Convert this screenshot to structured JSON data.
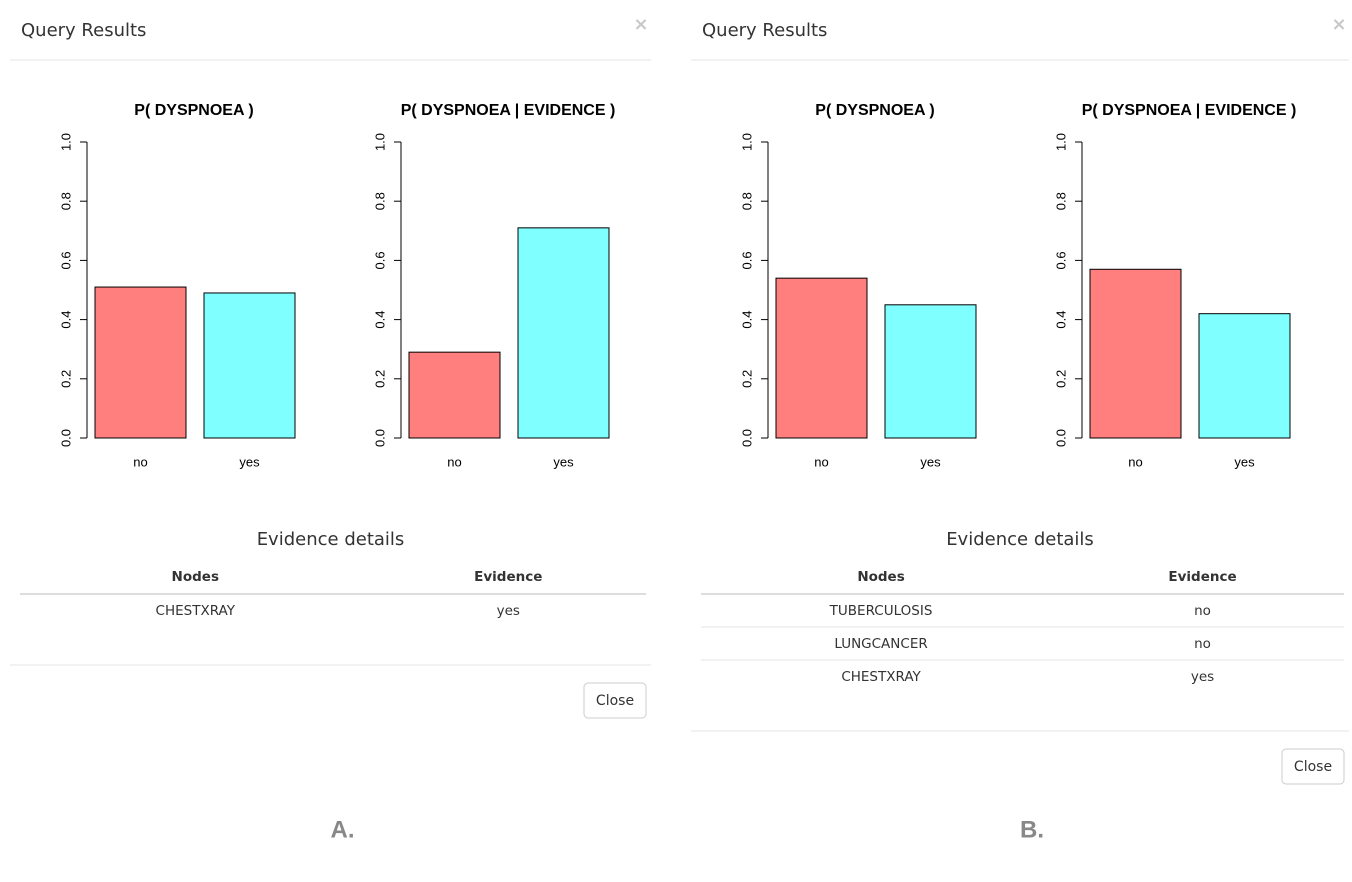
{
  "panels": [
    {
      "title": "Query Results",
      "close_symbol": "×",
      "charts": [
        {
          "type": "bar",
          "title": "P( DYSPNOEA )",
          "categories": [
            "no",
            "yes"
          ],
          "values": [
            0.51,
            0.49
          ],
          "colors": [
            "#ff7f7f",
            "#7fffff"
          ],
          "ylim": [
            0,
            1
          ],
          "yticks": [
            {
              "value": 0,
              "label": "0.0"
            },
            0.2,
            0.4,
            0.6,
            0.8,
            {
              "value": 1,
              "label": "1.0"
            }
          ]
        },
        {
          "type": "bar",
          "title": "P( DYSPNOEA | EVIDENCE )",
          "categories": [
            "no",
            "yes"
          ],
          "values": [
            0.29,
            0.71
          ],
          "colors": [
            "#ff7f7f",
            "#7fffff"
          ],
          "ylim": [
            0,
            1
          ],
          "yticks": [
            {
              "value": 0,
              "label": "0.0"
            },
            0.2,
            0.4,
            0.6,
            0.8,
            {
              "value": 1,
              "label": "1.0"
            }
          ]
        }
      ],
      "evidence": {
        "heading": "Evidence details",
        "columns": [
          "Nodes",
          "Evidence"
        ],
        "rows": [
          [
            "CHESTXRAY",
            "yes"
          ]
        ]
      },
      "button": "Close",
      "label": "A."
    },
    {
      "title": "Query Results",
      "close_symbol": "×",
      "charts": [
        {
          "type": "bar",
          "title": "P( DYSPNOEA )",
          "categories": [
            "no",
            "yes"
          ],
          "values": [
            0.54,
            0.45
          ],
          "colors": [
            "#ff7f7f",
            "#7fffff"
          ],
          "ylim": [
            0,
            1
          ],
          "yticks": [
            {
              "value": 0,
              "label": "0.0"
            },
            0.2,
            0.4,
            0.6,
            0.8,
            {
              "value": 1,
              "label": "1.0"
            }
          ]
        },
        {
          "type": "bar",
          "title": "P( DYSPNOEA | EVIDENCE )",
          "categories": [
            "no",
            "yes"
          ],
          "values": [
            0.57,
            0.42
          ],
          "colors": [
            "#ff7f7f",
            "#7fffff"
          ],
          "ylim": [
            0,
            1
          ],
          "yticks": [
            {
              "value": 0,
              "label": "0.0"
            },
            0.2,
            0.4,
            0.6,
            0.8,
            {
              "value": 1,
              "label": "1.0"
            }
          ]
        }
      ],
      "evidence": {
        "heading": "Evidence details",
        "columns": [
          "Nodes",
          "Evidence"
        ],
        "rows": [
          [
            "TUBERCULOSIS",
            "no"
          ],
          [
            "LUNGCANCER",
            "no"
          ],
          [
            "CHESTXRAY",
            "yes"
          ]
        ]
      },
      "button": "Close",
      "label": "B."
    }
  ]
}
